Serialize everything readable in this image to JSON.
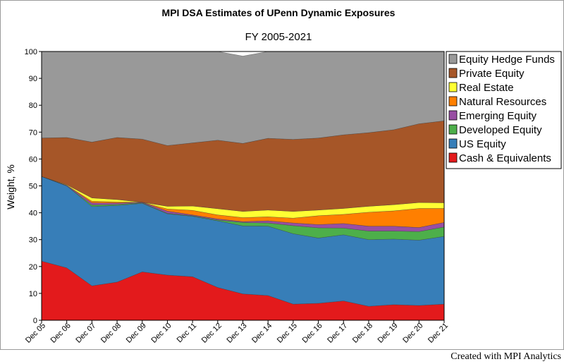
{
  "chart_data": {
    "type": "area",
    "stacked": true,
    "title": "MPI DSA Estimates of UPenn Dynamic Exposures",
    "subtitle": "FY 2005-2021",
    "ylabel": "Weight, %",
    "xlabel": "",
    "ylim": [
      0,
      100
    ],
    "yticks": [
      0,
      10,
      20,
      30,
      40,
      50,
      60,
      70,
      80,
      90,
      100
    ],
    "grid": false,
    "legend_position": "right",
    "categories": [
      "Dec 05",
      "Dec 06",
      "Dec 07",
      "Dec 08",
      "Dec 09",
      "Dec 10",
      "Dec 11",
      "Dec 12",
      "Dec 13",
      "Dec 14",
      "Dec 15",
      "Dec 16",
      "Dec 17",
      "Dec 18",
      "Dec 19",
      "Dec 20",
      "Dec 21"
    ],
    "series": [
      {
        "name": "Cash & Equivalents",
        "color": "#e31a1c",
        "values": [
          22.0,
          19.5,
          12.8,
          14.2,
          18.0,
          16.8,
          16.2,
          12.2,
          9.8,
          9.2,
          6.0,
          6.3,
          7.2,
          5.2,
          5.8,
          5.5,
          6.0
        ]
      },
      {
        "name": "US Equity",
        "color": "#377eb8",
        "values": [
          31.5,
          30.5,
          29.5,
          28.5,
          25.5,
          22.8,
          22.5,
          24.8,
          25.3,
          25.8,
          26.2,
          24.3,
          24.6,
          24.8,
          24.4,
          24.3,
          25.2
        ]
      },
      {
        "name": "Developed Equity",
        "color": "#4daf4a",
        "values": [
          0.0,
          0.0,
          0.6,
          0.4,
          0.2,
          0.2,
          0.2,
          0.3,
          1.3,
          1.2,
          3.0,
          3.8,
          2.5,
          3.2,
          3.0,
          3.2,
          3.5
        ]
      },
      {
        "name": "Emerging Equity",
        "color": "#984ea3",
        "values": [
          0.0,
          0.2,
          0.8,
          0.5,
          0.2,
          0.8,
          0.3,
          0.4,
          0.3,
          0.8,
          1.0,
          1.2,
          1.7,
          1.8,
          1.8,
          1.5,
          1.7
        ]
      },
      {
        "name": "Natural Resources",
        "color": "#ff7f00",
        "values": [
          0.0,
          0.0,
          0.6,
          0.4,
          0.0,
          0.8,
          1.7,
          1.5,
          1.5,
          1.5,
          1.8,
          3.3,
          3.4,
          5.2,
          5.7,
          7.1,
          5.2
        ]
      },
      {
        "name": "Real Estate",
        "color": "#ffff33",
        "values": [
          0.0,
          0.2,
          1.2,
          0.9,
          0.0,
          1.0,
          1.6,
          2.3,
          2.3,
          2.5,
          2.5,
          2.1,
          2.2,
          2.2,
          2.3,
          2.2,
          2.1
        ]
      },
      {
        "name": "Private Equity",
        "color": "#a65628",
        "values": [
          14.3,
          17.6,
          20.8,
          23.1,
          23.5,
          22.6,
          23.5,
          25.5,
          25.3,
          26.7,
          26.8,
          26.8,
          27.4,
          27.4,
          27.9,
          29.3,
          30.5
        ]
      },
      {
        "name": "Equity Hedge Funds",
        "color": "#999999",
        "values": [
          32.2,
          32.0,
          33.7,
          32.0,
          32.6,
          35.0,
          34.0,
          33.0,
          32.5,
          32.3,
          32.7,
          32.2,
          31.0,
          30.2,
          29.1,
          26.9,
          25.8
        ]
      }
    ]
  },
  "footer": {
    "credit": "Created with MPI Analytics"
  }
}
